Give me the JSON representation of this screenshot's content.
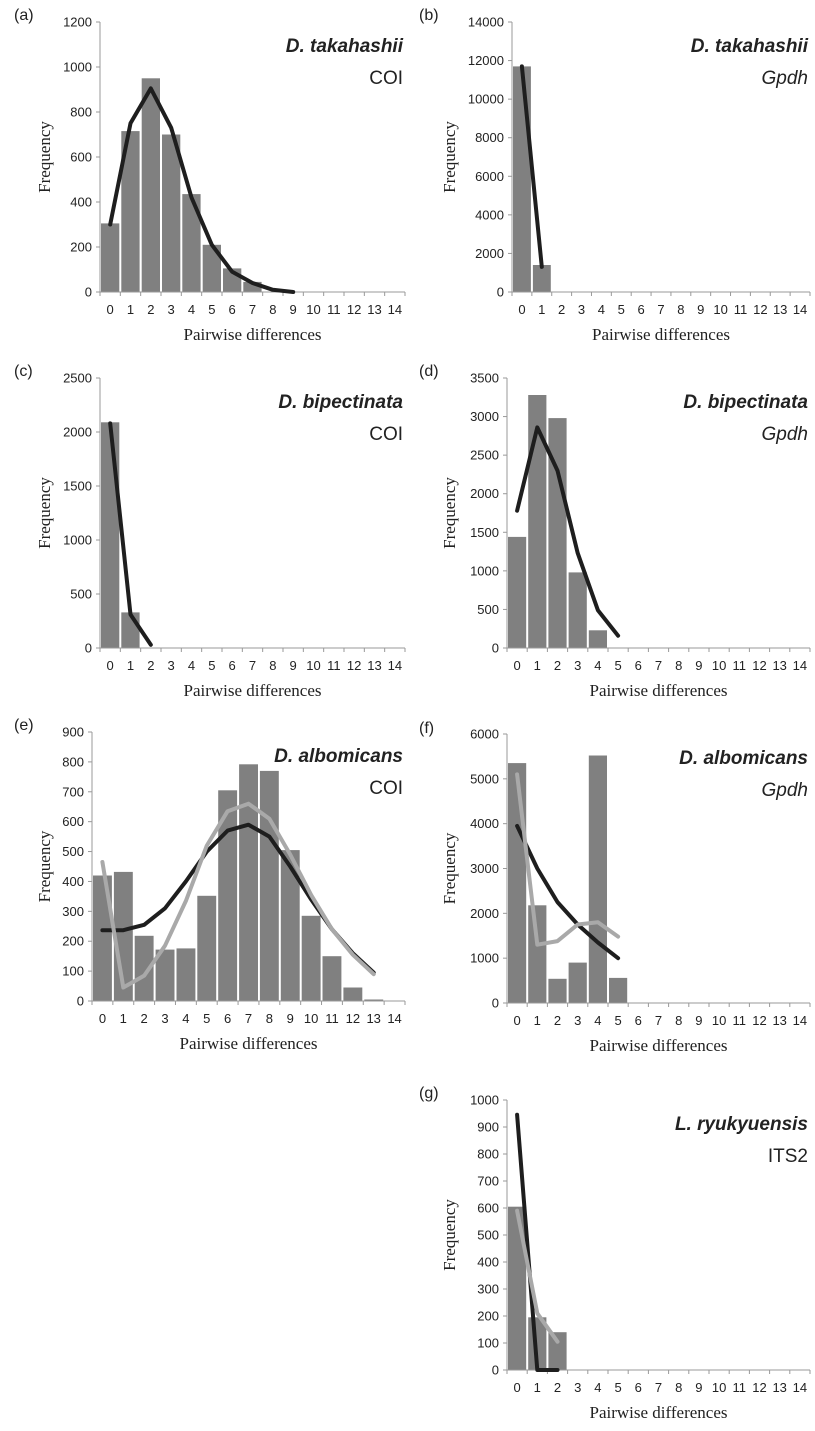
{
  "colors": {
    "bar": "#808080",
    "expected": "#1e1e1e",
    "secondary": "#a9a9a9",
    "axis": "#999999"
  },
  "chart_data": [
    {
      "id": "a",
      "type": "bar",
      "panel_label": "(a)",
      "species": "D. takahashii",
      "gene": "COI",
      "gene_italic": false,
      "xlabel": "Pairwise differences",
      "ylabel": "Frequency",
      "categories": [
        "0",
        "1",
        "2",
        "3",
        "4",
        "5",
        "6",
        "7",
        "8",
        "9",
        "10",
        "11",
        "12",
        "13",
        "14"
      ],
      "ylim": [
        0,
        1200
      ],
      "yticks": [
        0,
        200,
        400,
        600,
        800,
        1000,
        1200
      ],
      "values": [
        305,
        715,
        950,
        700,
        435,
        210,
        105,
        45,
        0,
        0,
        0,
        0,
        0,
        0,
        0
      ],
      "lines": [
        {
          "style": "black",
          "x": [
            0,
            1,
            2,
            3,
            4,
            5,
            6,
            7,
            8,
            9
          ],
          "y": [
            300,
            750,
            905,
            730,
            420,
            210,
            90,
            40,
            10,
            0
          ]
        }
      ]
    },
    {
      "id": "b",
      "type": "bar",
      "panel_label": "(b)",
      "species": "D. takahashii",
      "gene": "Gpdh",
      "gene_italic": true,
      "xlabel": "Pairwise differences",
      "ylabel": "Frequency",
      "categories": [
        "0",
        "1",
        "2",
        "3",
        "4",
        "5",
        "6",
        "7",
        "8",
        "9",
        "10",
        "11",
        "12",
        "13",
        "14"
      ],
      "ylim": [
        0,
        14000
      ],
      "yticks": [
        0,
        2000,
        4000,
        6000,
        8000,
        10000,
        12000,
        14000
      ],
      "values": [
        11700,
        1400,
        0,
        0,
        0,
        0,
        0,
        0,
        0,
        0,
        0,
        0,
        0,
        0,
        0
      ],
      "lines": [
        {
          "style": "black",
          "x": [
            0,
            1
          ],
          "y": [
            11700,
            1300
          ]
        }
      ]
    },
    {
      "id": "c",
      "type": "bar",
      "panel_label": "(c)",
      "species": "D. bipectinata",
      "gene": "COI",
      "gene_italic": false,
      "xlabel": "Pairwise differences",
      "ylabel": "Frequency",
      "categories": [
        "0",
        "1",
        "2",
        "3",
        "4",
        "5",
        "6",
        "7",
        "8",
        "9",
        "10",
        "11",
        "12",
        "13",
        "14"
      ],
      "ylim": [
        0,
        2500
      ],
      "yticks": [
        0,
        500,
        1000,
        1500,
        2000,
        2500
      ],
      "values": [
        2090,
        330,
        0,
        0,
        0,
        0,
        0,
        0,
        0,
        0,
        0,
        0,
        0,
        0,
        0
      ],
      "lines": [
        {
          "style": "black",
          "x": [
            0,
            1,
            2
          ],
          "y": [
            2080,
            310,
            30
          ]
        }
      ]
    },
    {
      "id": "d",
      "type": "bar",
      "panel_label": "(d)",
      "species": "D. bipectinata",
      "gene": "Gpdh",
      "gene_italic": true,
      "xlabel": "Pairwise differences",
      "ylabel": "Frequency",
      "categories": [
        "0",
        "1",
        "2",
        "3",
        "4",
        "5",
        "6",
        "7",
        "8",
        "9",
        "10",
        "11",
        "12",
        "13",
        "14"
      ],
      "ylim": [
        0,
        3500
      ],
      "yticks": [
        0,
        500,
        1000,
        1500,
        2000,
        2500,
        3000,
        3500
      ],
      "values": [
        1440,
        3280,
        2980,
        980,
        230,
        0,
        0,
        0,
        0,
        0,
        0,
        0,
        0,
        0,
        0
      ],
      "lines": [
        {
          "style": "black",
          "x": [
            0,
            1,
            2,
            3,
            4,
            5
          ],
          "y": [
            1780,
            2860,
            2300,
            1230,
            490,
            160
          ]
        }
      ]
    },
    {
      "id": "e",
      "type": "bar",
      "panel_label": "(e)",
      "species": "D. albomicans",
      "gene": "COI",
      "gene_italic": false,
      "xlabel": "Pairwise differences",
      "ylabel": "Frequency",
      "categories": [
        "0",
        "1",
        "2",
        "3",
        "4",
        "5",
        "6",
        "7",
        "8",
        "9",
        "10",
        "11",
        "12",
        "13",
        "14"
      ],
      "ylim": [
        0,
        900
      ],
      "yticks": [
        0,
        100,
        200,
        300,
        400,
        500,
        600,
        700,
        800,
        900
      ],
      "values": [
        420,
        432,
        218,
        172,
        176,
        352,
        705,
        792,
        770,
        505,
        285,
        150,
        45,
        5,
        0
      ],
      "lines": [
        {
          "style": "black",
          "x": [
            0,
            1,
            2,
            3,
            4,
            5,
            6,
            7,
            8,
            9,
            10,
            11,
            12,
            13
          ],
          "y": [
            237,
            237,
            255,
            310,
            400,
            500,
            570,
            590,
            550,
            450,
            340,
            240,
            160,
            95
          ]
        },
        {
          "style": "gray",
          "x": [
            0,
            1,
            2,
            3,
            4,
            5,
            6,
            7,
            8,
            9,
            10,
            11,
            12,
            13
          ],
          "y": [
            465,
            45,
            85,
            185,
            335,
            520,
            635,
            660,
            610,
            490,
            355,
            240,
            155,
            90
          ]
        }
      ]
    },
    {
      "id": "f",
      "type": "bar",
      "panel_label": "(f)",
      "species": "D. albomicans",
      "gene": "Gpdh",
      "gene_italic": true,
      "xlabel": "Pairwise differences",
      "ylabel": "Frequency",
      "categories": [
        "0",
        "1",
        "2",
        "3",
        "4",
        "5",
        "6",
        "7",
        "8",
        "9",
        "10",
        "11",
        "12",
        "13",
        "14"
      ],
      "ylim": [
        0,
        6000
      ],
      "yticks": [
        0,
        1000,
        2000,
        3000,
        4000,
        5000,
        6000
      ],
      "values": [
        5350,
        2180,
        540,
        900,
        5520,
        560,
        0,
        0,
        0,
        0,
        0,
        0,
        0,
        0,
        0
      ],
      "lines": [
        {
          "style": "black",
          "x": [
            0,
            1,
            2,
            3,
            4,
            5
          ],
          "y": [
            3950,
            3000,
            2250,
            1750,
            1350,
            1000
          ]
        },
        {
          "style": "gray",
          "x": [
            0,
            1,
            2,
            3,
            4,
            5
          ],
          "y": [
            5100,
            1300,
            1380,
            1750,
            1800,
            1480
          ]
        }
      ]
    },
    {
      "id": "g",
      "type": "bar",
      "panel_label": "(g)",
      "species": "L. ryukyuensis",
      "gene": "ITS2",
      "gene_italic": false,
      "xlabel": "Pairwise differences",
      "ylabel": "Frequency",
      "categories": [
        "0",
        "1",
        "2",
        "3",
        "4",
        "5",
        "6",
        "7",
        "8",
        "9",
        "10",
        "11",
        "12",
        "13",
        "14"
      ],
      "ylim": [
        0,
        1000
      ],
      "yticks": [
        0,
        100,
        200,
        300,
        400,
        500,
        600,
        700,
        800,
        900,
        1000
      ],
      "values": [
        605,
        195,
        140,
        0,
        0,
        0,
        0,
        0,
        0,
        0,
        0,
        0,
        0,
        0,
        0
      ],
      "lines": [
        {
          "style": "black",
          "x": [
            0,
            1,
            2
          ],
          "y": [
            945,
            0,
            0
          ]
        },
        {
          "style": "gray",
          "x": [
            0,
            1,
            2
          ],
          "y": [
            590,
            210,
            105
          ]
        }
      ]
    }
  ]
}
